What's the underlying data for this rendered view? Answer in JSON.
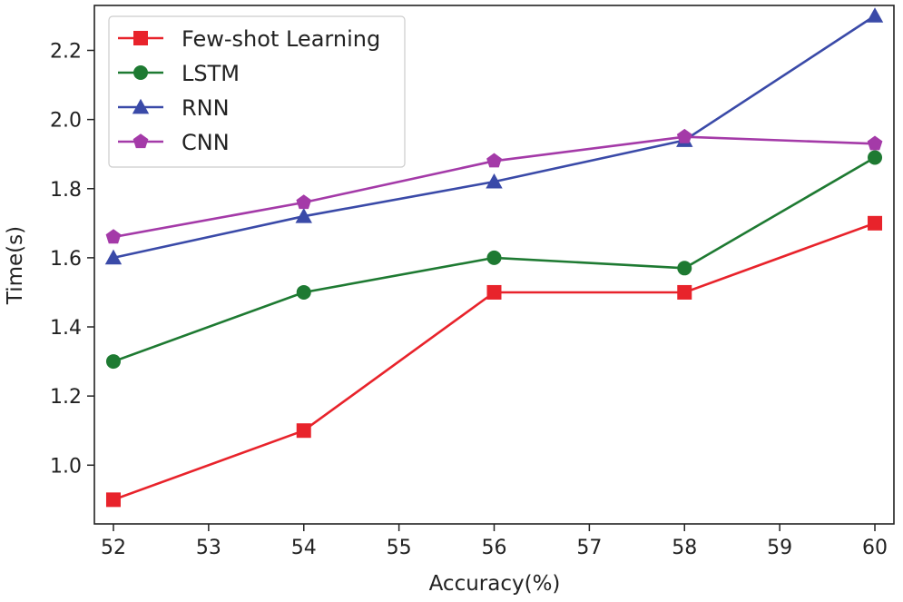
{
  "chart_data": {
    "type": "line",
    "title": "",
    "xlabel": "Accuracy(%)",
    "ylabel": "Time(s)",
    "xlim": [
      51.8,
      60.2
    ],
    "ylim": [
      0.83,
      2.33
    ],
    "xticks": [
      52,
      53,
      54,
      55,
      56,
      57,
      58,
      59,
      60
    ],
    "yticks": [
      1.0,
      1.2,
      1.4,
      1.6,
      1.8,
      2.0,
      2.2
    ],
    "ytick_labels": [
      "1.0",
      "1.2",
      "1.4",
      "1.6",
      "1.8",
      "2.0",
      "2.2"
    ],
    "grid": false,
    "legend_position": "top-left",
    "x": [
      52,
      54,
      56,
      58,
      60
    ],
    "series": [
      {
        "name": "Few-shot Learning",
        "color": "#e8232b",
        "marker": "square",
        "values": [
          0.9,
          1.1,
          1.5,
          1.5,
          1.7
        ]
      },
      {
        "name": "LSTM",
        "color": "#1e7a32",
        "marker": "circle",
        "values": [
          1.3,
          1.5,
          1.6,
          1.57,
          1.89
        ]
      },
      {
        "name": "RNN",
        "color": "#3a4aa8",
        "marker": "triangle",
        "values": [
          1.6,
          1.72,
          1.82,
          1.94,
          2.3
        ]
      },
      {
        "name": "CNN",
        "color": "#a43aa8",
        "marker": "pentagon",
        "values": [
          1.66,
          1.76,
          1.88,
          1.95,
          1.93
        ]
      }
    ]
  }
}
